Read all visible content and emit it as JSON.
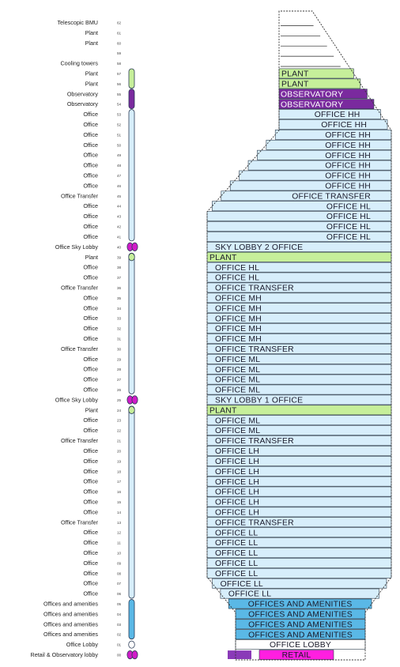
{
  "colors": {
    "office": "#d7eefb",
    "plant": "#c6ef9a",
    "observatory": "#7a2a9e",
    "amenities": "#5ab8e6",
    "retail": "#ff1fe0",
    "retail_block": "#8a3ab8",
    "lobby_node": "#d01cc8",
    "tower_outline": "#333333",
    "lift_outline": "#2a3a55"
  },
  "floors": [
    {
      "level": "62",
      "label": "Telescopic  BMU",
      "section": "",
      "type": "void"
    },
    {
      "level": "61",
      "label": "Plant",
      "section": "",
      "type": "void"
    },
    {
      "level": "60",
      "label": "Plant",
      "section": "",
      "type": "void"
    },
    {
      "level": "59",
      "label": "",
      "section": "",
      "type": "void"
    },
    {
      "level": "58",
      "label": "Cooling towers",
      "section": "",
      "type": "void"
    },
    {
      "level": "57",
      "label": "Plant",
      "section": "PLANT",
      "type": "plant"
    },
    {
      "level": "56",
      "label": "Plant",
      "section": "PLANT",
      "type": "plant"
    },
    {
      "level": "55",
      "label": "Observatory",
      "section": "OBSERVATORY",
      "type": "observatory"
    },
    {
      "level": "54",
      "label": "Observatory",
      "section": "OBSERVATORY",
      "type": "observatory"
    },
    {
      "level": "53",
      "label": "Office",
      "section": "OFFICE HH",
      "type": "office"
    },
    {
      "level": "52",
      "label": "Office",
      "section": "OFFICE HH",
      "type": "office"
    },
    {
      "level": "51",
      "label": "Office",
      "section": "OFFICE HH",
      "type": "office"
    },
    {
      "level": "50",
      "label": "Office",
      "section": "OFFICE HH",
      "type": "office"
    },
    {
      "level": "49",
      "label": "Office",
      "section": "OFFICE HH",
      "type": "office"
    },
    {
      "level": "48",
      "label": "Office",
      "section": "OFFICE HH",
      "type": "office"
    },
    {
      "level": "47",
      "label": "Office",
      "section": "OFFICE HH",
      "type": "office"
    },
    {
      "level": "46",
      "label": "Office",
      "section": "OFFICE HH",
      "type": "office"
    },
    {
      "level": "45",
      "label": "Office Transfer",
      "section": "OFFICE  TRANSFER",
      "type": "office"
    },
    {
      "level": "44",
      "label": "Office",
      "section": "OFFICE HL",
      "type": "office"
    },
    {
      "level": "43",
      "label": "Office",
      "section": "OFFICE HL",
      "type": "office"
    },
    {
      "level": "42",
      "label": "Office",
      "section": "OFFICE HL",
      "type": "office"
    },
    {
      "level": "41",
      "label": "Office",
      "section": "OFFICE HL",
      "type": "office"
    },
    {
      "level": "40",
      "label": "Office Sky Lobby",
      "section": "SKY LOBBY 2 OFFICE",
      "type": "office"
    },
    {
      "level": "39",
      "label": "Plant",
      "section": "PLANT",
      "type": "plant"
    },
    {
      "level": "38",
      "label": "Office",
      "section": "OFFICE HL",
      "type": "office"
    },
    {
      "level": "37",
      "label": "Office",
      "section": "OFFICE HL",
      "type": "office"
    },
    {
      "level": "36",
      "label": "Office Transfer",
      "section": "OFFICE  TRANSFER",
      "type": "office"
    },
    {
      "level": "35",
      "label": "Office",
      "section": "OFFICE MH",
      "type": "office"
    },
    {
      "level": "34",
      "label": "Office",
      "section": "OFFICE MH",
      "type": "office"
    },
    {
      "level": "33",
      "label": "Office",
      "section": "OFFICE MH",
      "type": "office"
    },
    {
      "level": "32",
      "label": "Office",
      "section": "OFFICE MH",
      "type": "office"
    },
    {
      "level": "31",
      "label": "Office",
      "section": "OFFICE MH",
      "type": "office"
    },
    {
      "level": "30",
      "label": "Office Transfer",
      "section": "OFFICE  TRANSFER",
      "type": "office"
    },
    {
      "level": "29",
      "label": "Office",
      "section": "OFFICE ML",
      "type": "office"
    },
    {
      "level": "28",
      "label": "Office",
      "section": "OFFICE ML",
      "type": "office"
    },
    {
      "level": "27",
      "label": "Office",
      "section": "OFFICE ML",
      "type": "office"
    },
    {
      "level": "26",
      "label": "Office",
      "section": "OFFICE ML",
      "type": "office"
    },
    {
      "level": "25",
      "label": "Office Sky Lobby",
      "section": "SKY LOBBY 1 OFFICE",
      "type": "office"
    },
    {
      "level": "24",
      "label": "Plant",
      "section": "PLANT",
      "type": "plant"
    },
    {
      "level": "23",
      "label": "Office",
      "section": "OFFICE ML",
      "type": "office"
    },
    {
      "level": "22",
      "label": "Office",
      "section": "OFFICE ML",
      "type": "office"
    },
    {
      "level": "21",
      "label": "Office Transfer",
      "section": "OFFICE  TRANSFER",
      "type": "office"
    },
    {
      "level": "20",
      "label": "Office",
      "section": "OFFICE LH",
      "type": "office"
    },
    {
      "level": "19",
      "label": "Office",
      "section": "OFFICE LH",
      "type": "office"
    },
    {
      "level": "18",
      "label": "Office",
      "section": "OFFICE LH",
      "type": "office"
    },
    {
      "level": "17",
      "label": "Office",
      "section": "OFFICE LH",
      "type": "office"
    },
    {
      "level": "16",
      "label": "Office",
      "section": "OFFICE LH",
      "type": "office"
    },
    {
      "level": "15",
      "label": "Office",
      "section": "OFFICE LH",
      "type": "office"
    },
    {
      "level": "14",
      "label": "Office",
      "section": "OFFICE LH",
      "type": "office"
    },
    {
      "level": "13",
      "label": "Office Transfer",
      "section": "OFFICE  TRANSFER",
      "type": "office"
    },
    {
      "level": "12",
      "label": "Office",
      "section": "OFFICE LL",
      "type": "office"
    },
    {
      "level": "11",
      "label": "Office",
      "section": "OFFICE LL",
      "type": "office"
    },
    {
      "level": "10",
      "label": "Office",
      "section": "OFFICE LL",
      "type": "office"
    },
    {
      "level": "09",
      "label": "Office",
      "section": "OFFICE LL",
      "type": "office"
    },
    {
      "level": "08",
      "label": "Office",
      "section": "OFFICE LL",
      "type": "office"
    },
    {
      "level": "07",
      "label": "Office",
      "section": "OFFICE LL",
      "type": "office"
    },
    {
      "level": "06",
      "label": "Office",
      "section": "OFFICE LL",
      "type": "office"
    },
    {
      "level": "05",
      "label": "Offices and amenities",
      "section": "OFFICES AND AMENITIES",
      "type": "amenities"
    },
    {
      "level": "04",
      "label": "Offices and amenities",
      "section": "OFFICES AND AMENITIES",
      "type": "amenities"
    },
    {
      "level": "03",
      "label": "Offices and amenities",
      "section": "OFFICES AND AMENITIES",
      "type": "amenities"
    },
    {
      "level": "02",
      "label": "Offices and amenities",
      "section": "OFFICES AND AMENITIES",
      "type": "amenities"
    },
    {
      "level": "01",
      "label": "Office Lobby",
      "section": "OFFICE LOBBY",
      "type": "lobby"
    },
    {
      "level": "00",
      "label": "Retail & Observatory lobby",
      "section": "RETAIL",
      "type": "retail"
    }
  ]
}
